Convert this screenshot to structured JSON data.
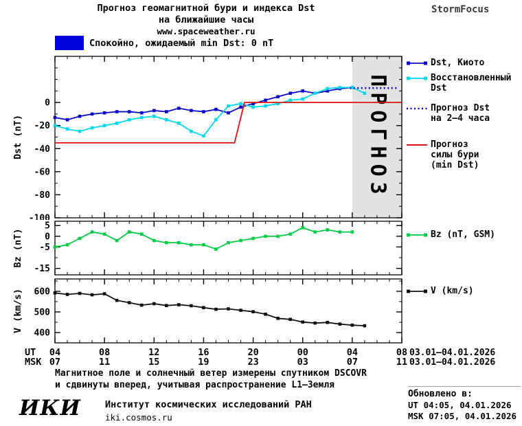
{
  "header": {
    "title_line1": "Прогноз геомагнитной бури и индекса Dst",
    "title_line2": "на ближайшие часы",
    "url": "www.spaceweather.ru",
    "brand": "StormFocus"
  },
  "status_banner": {
    "text": "Спокойно, ожидаемый min Dst: 0 nT",
    "color": "#0000dd"
  },
  "chart_data": {
    "type": "line",
    "x_axis": {
      "min": 4,
      "max": 32,
      "tick_hours": [
        4,
        8,
        12,
        16,
        20,
        24,
        28,
        32
      ],
      "ut_labels": [
        "04",
        "08",
        "12",
        "16",
        "20",
        "00",
        "04",
        "08"
      ],
      "msk_labels": [
        "07",
        "11",
        "15",
        "19",
        "23",
        "03",
        "07",
        "11"
      ],
      "ut_row_label": "UT",
      "msk_row_label": "MSK",
      "date_range_ut": "03.01–04.01.2026",
      "date_range_msk": "03.01–04.01.2026"
    },
    "panels": [
      {
        "id": "dst",
        "ylabel": "Dst (nT)",
        "ylim": [
          -100,
          40
        ],
        "yticks": [
          0,
          -20,
          -40,
          -60,
          -80,
          -100
        ],
        "yminor": 10,
        "forecast_band": {
          "from": 28,
          "to": 32,
          "label": "ПРОГНОЗ"
        },
        "series": [
          {
            "name": "Dst, Киото",
            "color": "#0a0acd",
            "marker": "square",
            "line": "solid",
            "x": [
              4,
              5,
              6,
              7,
              8,
              9,
              10,
              11,
              12,
              13,
              14,
              15,
              16,
              17,
              18,
              19,
              20,
              21,
              22,
              23,
              24,
              25,
              26,
              27,
              28
            ],
            "y": [
              -13,
              -15,
              -12,
              -10,
              -9,
              -8,
              -8,
              -9,
              -7,
              -8,
              -5,
              -7,
              -8,
              -6,
              -9,
              -4,
              -1,
              2,
              5,
              8,
              10,
              8,
              10,
              12,
              13
            ]
          },
          {
            "name": "Восстановленный Dst",
            "color": "#00d8ee",
            "marker": "square",
            "line": "solid",
            "x": [
              4,
              5,
              6,
              7,
              8,
              9,
              10,
              11,
              12,
              13,
              14,
              15,
              16,
              17,
              18,
              19,
              20,
              21,
              22,
              23,
              24,
              25,
              26,
              27,
              28,
              29
            ],
            "y": [
              -20,
              -23,
              -25,
              -22,
              -20,
              -18,
              -15,
              -13,
              -12,
              -15,
              -18,
              -25,
              -29,
              -15,
              -3,
              -1,
              -4,
              -3,
              -1,
              2,
              3,
              8,
              12,
              13,
              13,
              8
            ]
          },
          {
            "name": "Прогноз Dst на 2–4 часа",
            "color": "#0a0acd",
            "marker": "none",
            "line": "dotted",
            "x": [
              27.8,
              31.6
            ],
            "y": [
              12.5,
              12.5
            ]
          },
          {
            "name": "Прогноз силы бури (min Dst)",
            "color": "#dd1111",
            "marker": "none",
            "line": "solid",
            "x": [
              4,
              18.5,
              19.3,
              32
            ],
            "y": [
              -35,
              -35,
              0,
              0
            ]
          }
        ]
      },
      {
        "id": "bz",
        "ylabel": "Bz (nT)",
        "ylim": [
          -18,
          7
        ],
        "yticks": [
          5,
          0,
          -5,
          -15
        ],
        "yminor": 5,
        "series": [
          {
            "name": "Bz (nT, GSM)",
            "color": "#00cc44",
            "marker": "square",
            "line": "solid",
            "x": [
              4,
              5,
              6,
              7,
              8,
              9,
              10,
              11,
              12,
              13,
              14,
              15,
              16,
              17,
              18,
              19,
              20,
              21,
              22,
              23,
              24,
              25,
              26,
              27,
              28
            ],
            "y": [
              -5,
              -4,
              -1,
              2,
              1,
              -2,
              2,
              1,
              -2,
              -3,
              -3,
              -4,
              -4,
              -6,
              -3,
              -2,
              -1,
              0,
              0,
              1,
              4,
              2,
              3,
              2,
              2
            ]
          }
        ]
      },
      {
        "id": "v",
        "ylabel": "V (km/s)",
        "ylim": [
          350,
          660
        ],
        "yticks": [
          600,
          500,
          400
        ],
        "yminor": 50,
        "series": [
          {
            "name": "V (km/s)",
            "color": "#111111",
            "marker": "square",
            "line": "solid",
            "x": [
              4,
              5,
              6,
              7,
              8,
              9,
              10,
              11,
              12,
              13,
              14,
              15,
              16,
              17,
              18,
              19,
              20,
              21,
              22,
              23,
              24,
              25,
              26,
              27,
              28,
              29
            ],
            "y": [
              592,
              585,
              590,
              583,
              588,
              556,
              545,
              533,
              540,
              531,
              535,
              530,
              521,
              513,
              515,
              508,
              501,
              489,
              469,
              464,
              451,
              446,
              449,
              441,
              436,
              433
            ]
          }
        ]
      }
    ],
    "legend": [
      {
        "lines": [
          "Dst, Киото"
        ],
        "color": "#0a0acd",
        "marker": "squares"
      },
      {
        "lines": [
          "Восстановленный",
          "Dst"
        ],
        "color": "#00d8ee",
        "marker": "squares"
      },
      {
        "lines": [
          "Прогноз Dst",
          "на 2–4 часа"
        ],
        "color": "#0a0acd",
        "marker": "dotted"
      },
      {
        "lines": [
          "Прогноз",
          "силы бури",
          "(min Dst)"
        ],
        "color": "#dd1111",
        "marker": "line"
      },
      {
        "lines": [
          "Bz (nT, GSM)"
        ],
        "color": "#00cc44",
        "marker": "squares"
      },
      {
        "lines": [
          "V (km/s)"
        ],
        "color": "#111111",
        "marker": "squares"
      }
    ]
  },
  "footer": {
    "note_line1": "Магнитное поле и солнечный ветер измерены спутником DSCOVR",
    "note_line2": "и сдвинуты вперед, учитывая распространение L1–Земля",
    "logo": "ИКИ",
    "institute": "Институт космических исследований РАН",
    "site": "iki.cosmos.ru"
  },
  "updated": {
    "label": "Обновлено в:",
    "ut": "UT  04:05, 04.01.2026",
    "msk": "MSK 07:05, 04.01.2026"
  }
}
